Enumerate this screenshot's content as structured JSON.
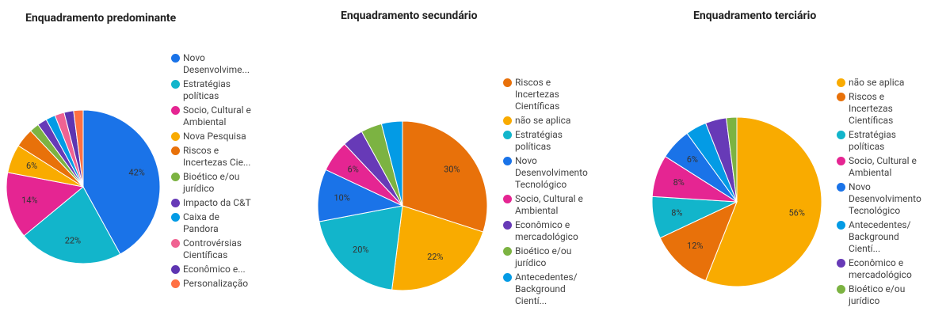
{
  "chart_data": [
    {
      "type": "pie",
      "title": "Enquadramento predominante",
      "categories": [
        "Novo Desenvolvime...",
        "Estratégias políticas",
        "Socio, Cultural e Ambiental",
        "Nova Pesquisa",
        "Riscos e Incertezas Cie...",
        "Bioético e/ou jurídico",
        "Impacto da C&T",
        "Caixa de Pandora",
        "Controvérsias Científicas",
        "Econômico e...",
        "Personalização"
      ],
      "values": [
        42,
        22,
        14,
        6,
        4,
        2,
        2,
        2,
        2,
        2,
        2
      ],
      "value_labels": [
        "42%",
        "22%",
        "14%",
        "6%",
        null,
        null,
        null,
        null,
        null,
        null,
        null
      ],
      "colors": [
        "#1a73e8",
        "#12b5cb",
        "#e52592",
        "#f9ab00",
        "#e8710a",
        "#7cb342",
        "#673ab7",
        "#039be5",
        "#f06292",
        "#5e35b1",
        "#ff7043"
      ]
    },
    {
      "type": "pie",
      "title": "Enquadramento secundário",
      "categories": [
        "Riscos e Incertezas Científicas",
        "não se aplica",
        "Estratégias políticas",
        "Novo Desenvolvimento Tecnológico",
        "Socio, Cultural e Ambiental",
        "Econômico e mercadológico",
        "Bioético e/ou jurídico",
        "Antecedentes/ Background Cientí..."
      ],
      "values": [
        30,
        22,
        20,
        10,
        6,
        4,
        4,
        4
      ],
      "value_labels": [
        "30%",
        "22%",
        "20%",
        "10%",
        "6%",
        null,
        null,
        null
      ],
      "colors": [
        "#e8710a",
        "#f9ab00",
        "#12b5cb",
        "#1a73e8",
        "#e52592",
        "#673ab7",
        "#7cb342",
        "#039be5"
      ]
    },
    {
      "type": "pie",
      "title": "Enquadramento terciário",
      "categories": [
        "não se aplica",
        "Riscos e Incertezas Científicas",
        "Estratégias políticas",
        "Socio, Cultural e Ambiental",
        "Novo Desenvolvimento Tecnológico",
        "Antecedentes/ Background Cientí...",
        "Econômico e mercadológico",
        "Bioético e/ou jurídico"
      ],
      "values": [
        56,
        12,
        8,
        8,
        6,
        4,
        4,
        2
      ],
      "value_labels": [
        "56%",
        "12%",
        "8%",
        "8%",
        "6%",
        null,
        null,
        null
      ],
      "colors": [
        "#f9ab00",
        "#e8710a",
        "#12b5cb",
        "#e52592",
        "#1a73e8",
        "#039be5",
        "#673ab7",
        "#7cb342"
      ]
    }
  ]
}
